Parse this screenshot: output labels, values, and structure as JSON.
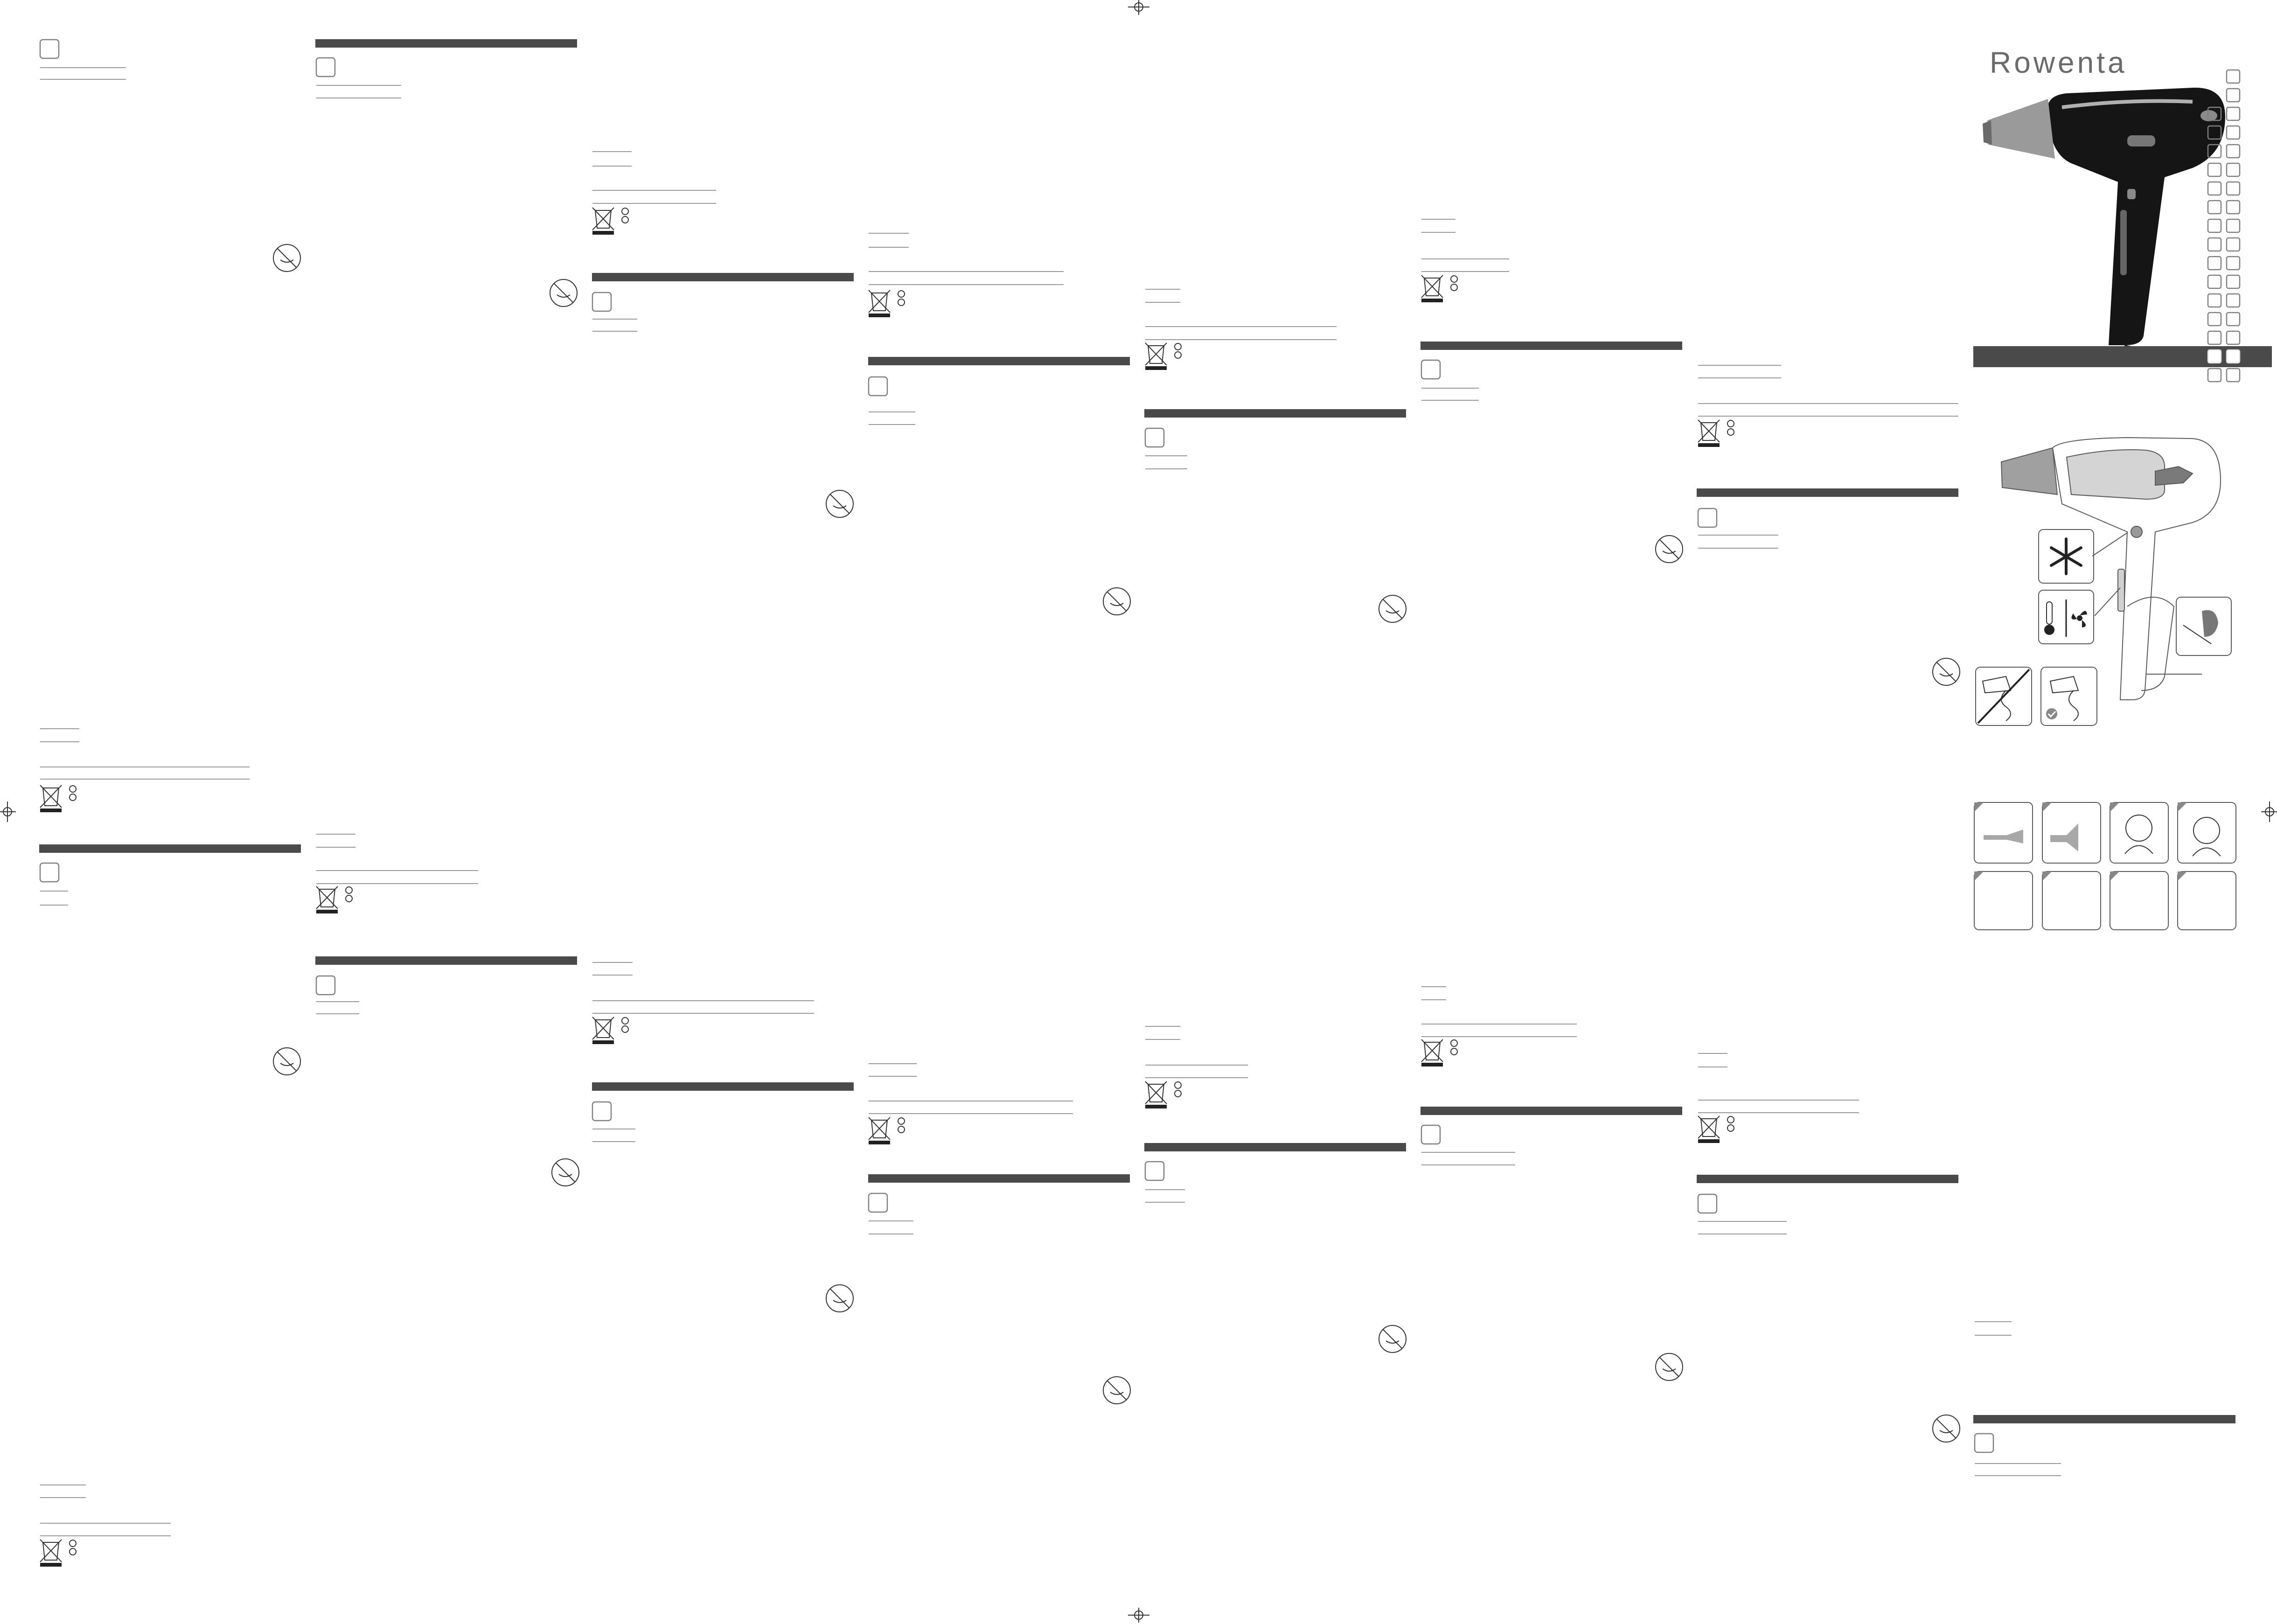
{
  "brand": {
    "name": "Rowenta"
  }
}
